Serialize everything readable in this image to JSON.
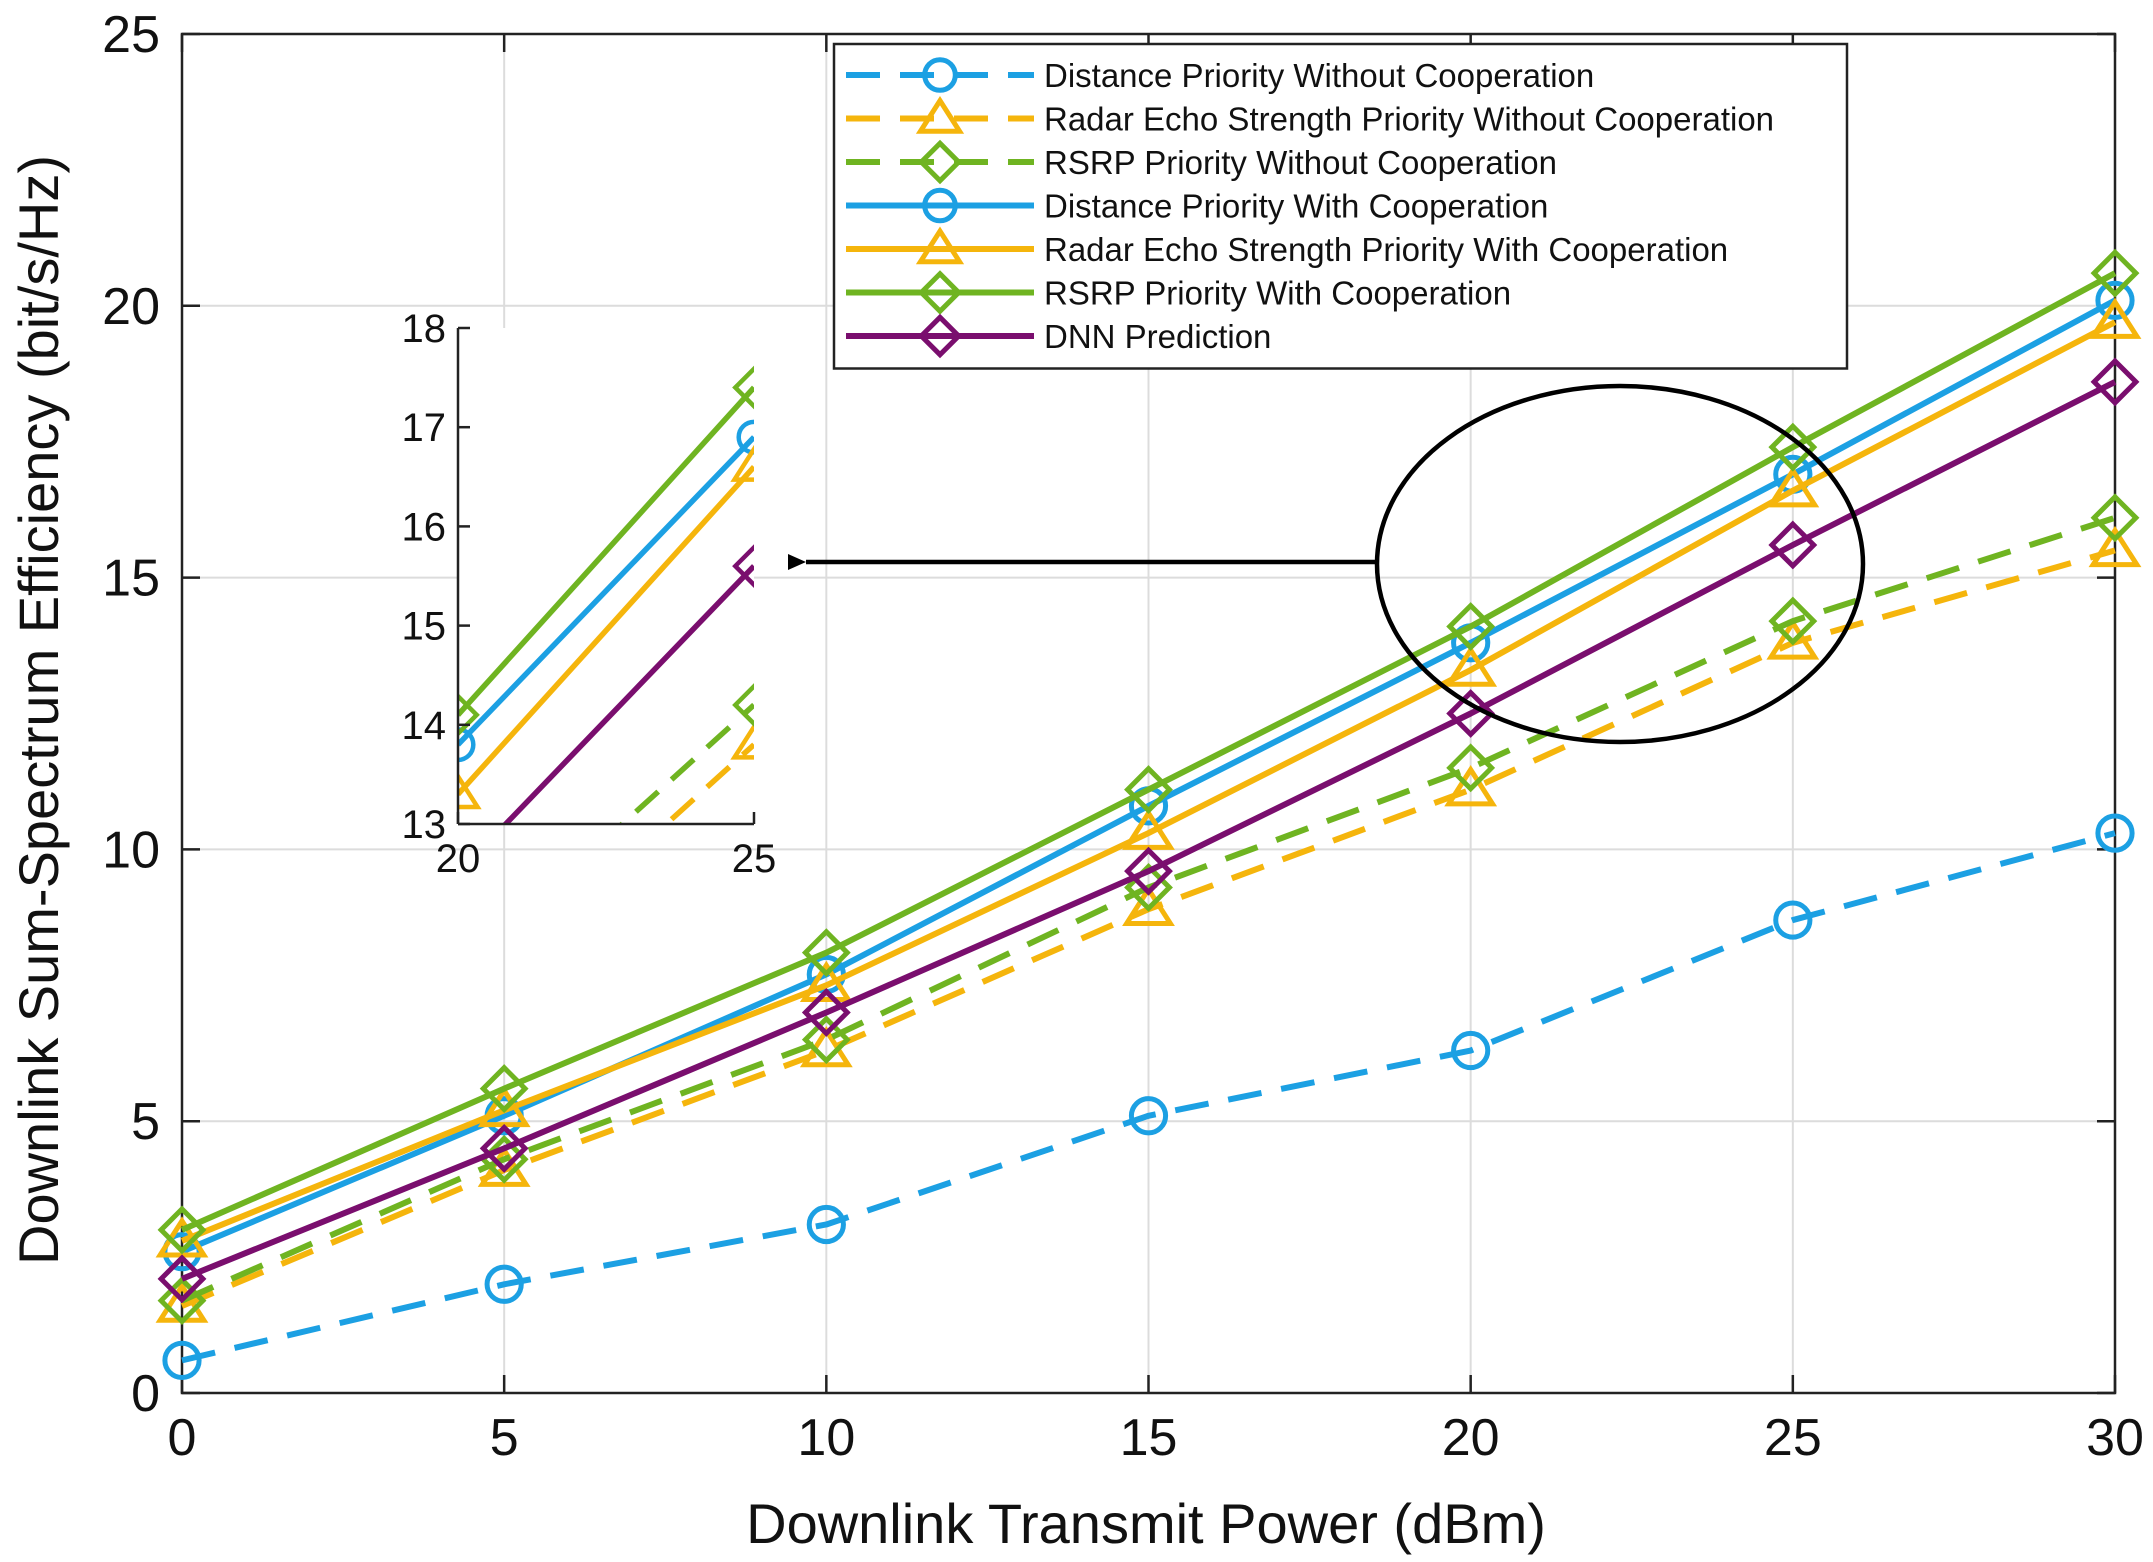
{
  "chart_data": {
    "type": "line",
    "title": "",
    "xlabel": "Downlink Transmit Power (dBm)",
    "ylabel": "Downlink Sum-Spectrum Efficiency (bit/s/Hz)",
    "xlim": [
      0,
      30
    ],
    "ylim": [
      0,
      25
    ],
    "xticks": [
      "0",
      "5",
      "10",
      "15",
      "20",
      "25",
      "30"
    ],
    "yticks": [
      "0",
      "5",
      "10",
      "15",
      "20",
      "25"
    ],
    "grid": true,
    "legend_position": "top-right",
    "x": [
      0,
      5,
      10,
      15,
      20,
      25,
      30
    ],
    "series": [
      {
        "name": "Distance Priority Without Cooperation",
        "color": "#1ca0e3",
        "dashed": true,
        "marker": "circle",
        "values": [
          0.6,
          2.0,
          3.1,
          5.1,
          6.3,
          8.7,
          10.3
        ]
      },
      {
        "name": "Radar Echo Strength Priority Without Cooperation",
        "color": "#f5b50c",
        "dashed": true,
        "marker": "triangle",
        "values": [
          1.6,
          4.1,
          6.3,
          8.9,
          11.1,
          13.8,
          15.5
        ]
      },
      {
        "name": "RSRP Priority Without Cooperation",
        "color": "#6fb421",
        "dashed": true,
        "marker": "diamond",
        "values": [
          1.7,
          4.3,
          6.5,
          9.3,
          11.5,
          14.2,
          16.1
        ]
      },
      {
        "name": "Distance Priority With Cooperation",
        "color": "#1ca0e3",
        "dashed": false,
        "marker": "circle",
        "values": [
          2.6,
          5.1,
          7.7,
          10.8,
          13.8,
          16.9,
          20.1
        ]
      },
      {
        "name": "Radar Echo Strength Priority With Cooperation",
        "color": "#f5b50c",
        "dashed": false,
        "marker": "triangle",
        "values": [
          2.8,
          5.2,
          7.5,
          10.3,
          13.3,
          16.6,
          19.7
        ]
      },
      {
        "name": "RSRP Priority With Cooperation",
        "color": "#6fb421",
        "dashed": false,
        "marker": "diamond",
        "values": [
          3.0,
          5.6,
          8.1,
          11.1,
          14.1,
          17.4,
          20.6
        ]
      },
      {
        "name": "DNN Prediction",
        "color": "#7a0e6e",
        "dashed": false,
        "marker": "diamond",
        "values": [
          2.1,
          4.5,
          7.0,
          9.6,
          12.5,
          15.6,
          18.6
        ]
      }
    ],
    "inset": {
      "xlim": [
        20,
        25
      ],
      "ylim": [
        13,
        18
      ],
      "xticks": [
        "20",
        "25"
      ],
      "yticks": [
        "13",
        "14",
        "15",
        "16",
        "17",
        "18"
      ]
    },
    "annotations": [
      "ellipse highlighting x=20..25 region",
      "arrow pointing to zoomed inset"
    ]
  }
}
